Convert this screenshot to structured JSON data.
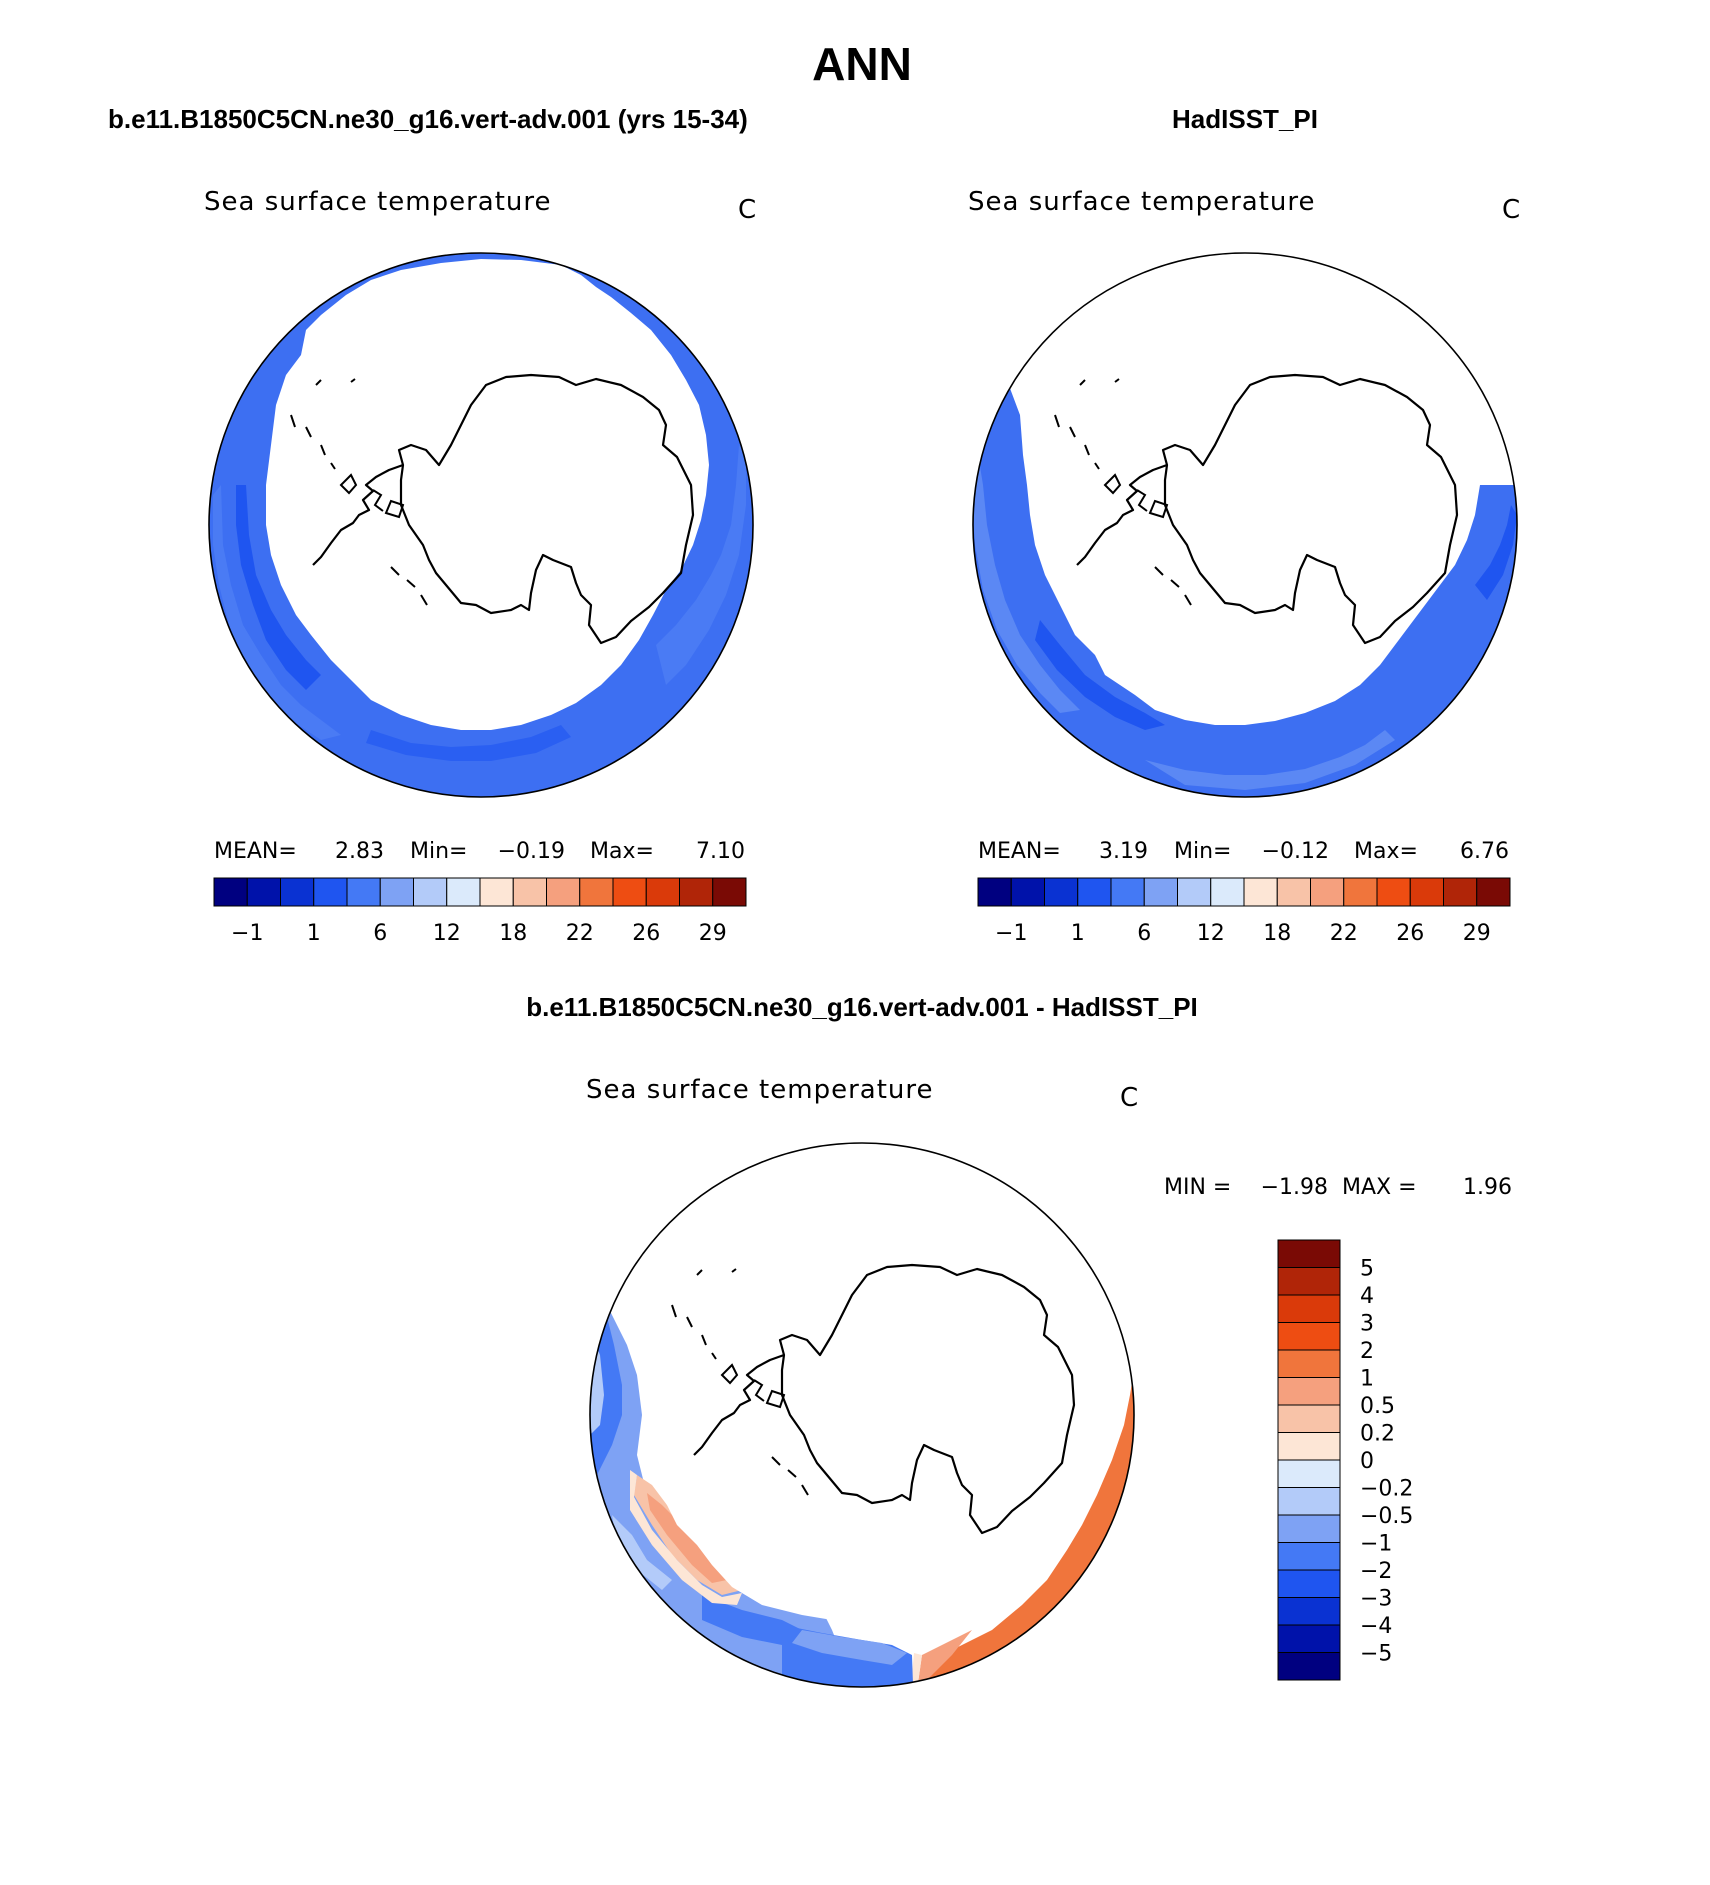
{
  "title": "ANN",
  "panels": {
    "model": {
      "header": "b.e11.B1850C5CN.ne30_g16.vert-adv.001 (yrs 15-34)",
      "variable": "Sea surface temperature",
      "units": "C",
      "stats": {
        "mean_label": "MEAN=",
        "mean": "2.83",
        "min_label": "Min=",
        "min": "−0.19",
        "max_label": "Max=",
        "max": "7.10"
      },
      "colorbar_ticks": [
        "−1",
        "1",
        "6",
        "12",
        "18",
        "22",
        "26",
        "29"
      ]
    },
    "obs": {
      "header": "HadISST_PI",
      "variable": "Sea surface temperature",
      "units": "C",
      "stats": {
        "mean_label": "MEAN=",
        "mean": "3.19",
        "min_label": "Min=",
        "min": "−0.12",
        "max_label": "Max=",
        "max": "6.76"
      },
      "colorbar_ticks": [
        "−1",
        "1",
        "6",
        "12",
        "18",
        "22",
        "26",
        "29"
      ]
    },
    "diff": {
      "header": "b.e11.B1850C5CN.ne30_g16.vert-adv.001 - HadISST_PI",
      "variable": "Sea surface temperature",
      "units": "C",
      "stats": {
        "min_label": "MIN =",
        "min": "−1.98",
        "max_label": "MAX =",
        "max": "1.96"
      },
      "colorbar_ticks": [
        "5",
        "4",
        "3",
        "2",
        "1",
        "0.5",
        "0.2",
        "0",
        "−0.2",
        "−0.5",
        "−1",
        "−2",
        "−3",
        "−4",
        "−5"
      ]
    }
  },
  "colors": {
    "sst_scale": [
      "#000080",
      "#0012aa",
      "#0a32d2",
      "#1f55f0",
      "#4479f5",
      "#7ea2f4",
      "#b3cbf9",
      "#dbeafb",
      "#fde6d6",
      "#f8c3a8",
      "#f5a07e",
      "#f0753c",
      "#ee4d12",
      "#da3a0a",
      "#b02508",
      "#7a0a05"
    ],
    "diff_scale": [
      "#7a0a05",
      "#b02508",
      "#da3a0a",
      "#ee4d12",
      "#f0753c",
      "#f5a07e",
      "#f8c3a8",
      "#fde6d6",
      "#dbeafb",
      "#b3cbf9",
      "#7ea2f4",
      "#4479f5",
      "#1f55f0",
      "#0a32d2",
      "#0012aa",
      "#000080"
    ],
    "ocean_main": "#3d6ff2",
    "ocean_dark": "#1f55f0",
    "ocean_light": "#7ea2f4",
    "warm_main": "#f0753c",
    "warm_light": "#f5a07e"
  }
}
